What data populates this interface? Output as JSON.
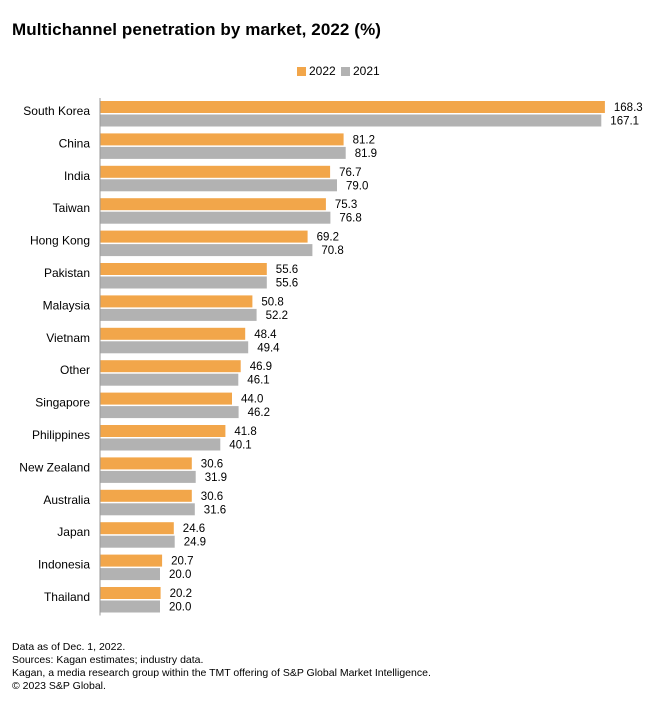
{
  "title": "Multichannel penetration by market, 2022 (%)",
  "colors": {
    "2022": "#F2A64A",
    "2021": "#B2B2B2",
    "axis": "#999999"
  },
  "chart_data": {
    "type": "bar",
    "orientation": "horizontal",
    "title": "Multichannel penetration by market, 2022 (%)",
    "legend_position": "top",
    "xlim": [
      0,
      170
    ],
    "categories": [
      "South Korea",
      "China",
      "India",
      "Taiwan",
      "Hong Kong",
      "Pakistan",
      "Malaysia",
      "Vietnam",
      "Other",
      "Singapore",
      "Philippines",
      "New Zealand",
      "Australia",
      "Japan",
      "Indonesia",
      "Thailand"
    ],
    "series": [
      {
        "name": "2022",
        "values": [
          168.3,
          81.2,
          76.7,
          75.3,
          69.2,
          55.6,
          50.8,
          48.4,
          46.9,
          44.0,
          41.8,
          30.6,
          30.6,
          24.6,
          20.7,
          20.2
        ],
        "labels": [
          "168.3",
          "81.2",
          "76.7",
          "75.3",
          "69.2",
          "55.6",
          "50.8",
          "48.4",
          "46.9",
          "44.0",
          "41.8",
          "30.6",
          "30.6",
          "24.6",
          "20.7",
          "20.2"
        ]
      },
      {
        "name": "2021",
        "values": [
          167.1,
          81.9,
          79.0,
          76.8,
          70.8,
          55.6,
          52.2,
          49.4,
          46.1,
          46.2,
          40.1,
          31.9,
          31.6,
          24.9,
          20.0,
          20.0
        ],
        "labels": [
          "167.1",
          "81.9",
          "79.0",
          "76.8",
          "70.8",
          "55.6",
          "52.2",
          "49.4",
          "46.1",
          "46.2",
          "40.1",
          "31.9",
          "31.6",
          "24.9",
          "20.0",
          "20.0"
        ]
      }
    ]
  },
  "footnotes": [
    "Data as of  Dec. 1, 2022.",
    "Sources: Kagan estimates; industry data.",
    "Kagan, a media research group within the TMT offering of S&P Global Market Intelligence.",
    "© 2023 S&P Global."
  ]
}
